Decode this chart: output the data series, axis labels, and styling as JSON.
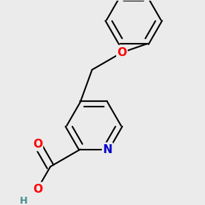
{
  "bg_color": "#ebebeb",
  "bond_color": "#000000",
  "bond_width": 1.6,
  "atom_colors": {
    "O": "#ff0000",
    "N": "#0000cc",
    "H": "#4a9090"
  },
  "font_size": 12,
  "font_size_H": 10
}
